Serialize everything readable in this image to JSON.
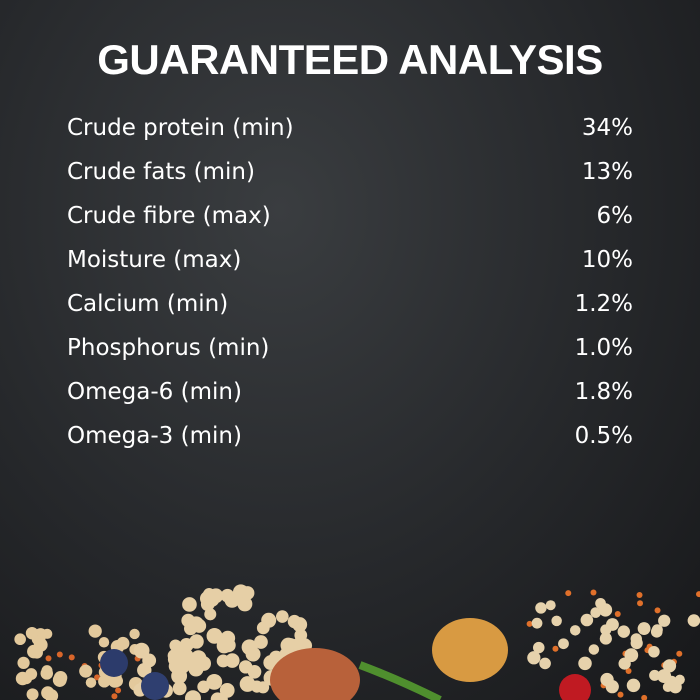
{
  "header": {
    "title": "GUARANTEED ANALYSIS"
  },
  "table": {
    "rows": [
      [
        "Crude protein (min)",
        "34%"
      ],
      [
        "Crude fats (min)",
        "13%"
      ],
      [
        "Crude fibre (max)",
        "6%"
      ],
      [
        "Moisture (max)",
        "10%"
      ],
      [
        "Calcium (min)",
        "1.2%"
      ],
      [
        "Phosphorus (min)",
        "1.0%"
      ],
      [
        "Omega-6 (min)",
        "1.8%"
      ],
      [
        "Omega-3 (min)",
        "0.5%"
      ]
    ]
  }
}
